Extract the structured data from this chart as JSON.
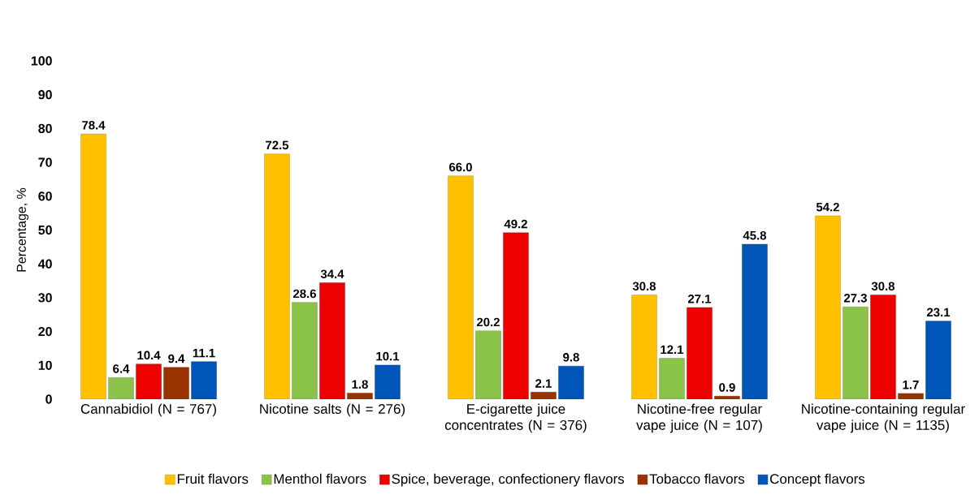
{
  "chart_data": {
    "type": "bar",
    "ylabel": "Percentage, %",
    "categories": [
      "Cannabidiol (N = 767)",
      "Nicotine salts (N = 276)",
      "E-cigarette juice concentrates (N = 376)",
      "Nicotine-free regular vape juice (N = 107)",
      "Nicotine-containing regular vape juice (N = 1135)"
    ],
    "series": [
      {
        "name": "Fruit flavors",
        "color": "#ffc000",
        "values": [
          78.4,
          72.5,
          66.0,
          30.8,
          54.2
        ],
        "value_labels": [
          "78.4",
          "72.5",
          "66.0",
          "30.8",
          "54.2"
        ]
      },
      {
        "name": "Menthol flavors",
        "color": "#8bc34a",
        "values": [
          6.4,
          28.6,
          20.2,
          12.1,
          27.3
        ],
        "value_labels": [
          "6.4",
          "28.6",
          "20.2",
          "12.1",
          "27.3"
        ]
      },
      {
        "name": "Spice, beverage, confectionery flavors",
        "color": "#ee0000",
        "values": [
          10.4,
          34.4,
          49.2,
          27.1,
          30.8
        ],
        "value_labels": [
          "10.4",
          "34.4",
          "49.2",
          "27.1",
          "30.8"
        ]
      },
      {
        "name": "Tobacco flavors",
        "color": "#993300",
        "values": [
          9.4,
          1.8,
          2.1,
          0.9,
          1.7
        ],
        "value_labels": [
          "9.4",
          "1.8",
          "2.1",
          "0.9",
          "1.7"
        ]
      },
      {
        "name": "Concept flavors",
        "color": "#0055b8",
        "values": [
          11.1,
          10.1,
          9.8,
          45.8,
          23.1
        ],
        "value_labels": [
          "11.1",
          "10.1",
          "9.8",
          "45.8",
          "23.1"
        ]
      }
    ],
    "ylim": [
      0,
      100
    ],
    "yticks": [
      0,
      10,
      20,
      30,
      40,
      50,
      60,
      70,
      80,
      90,
      100
    ],
    "legend": "bottom",
    "grid": false
  }
}
